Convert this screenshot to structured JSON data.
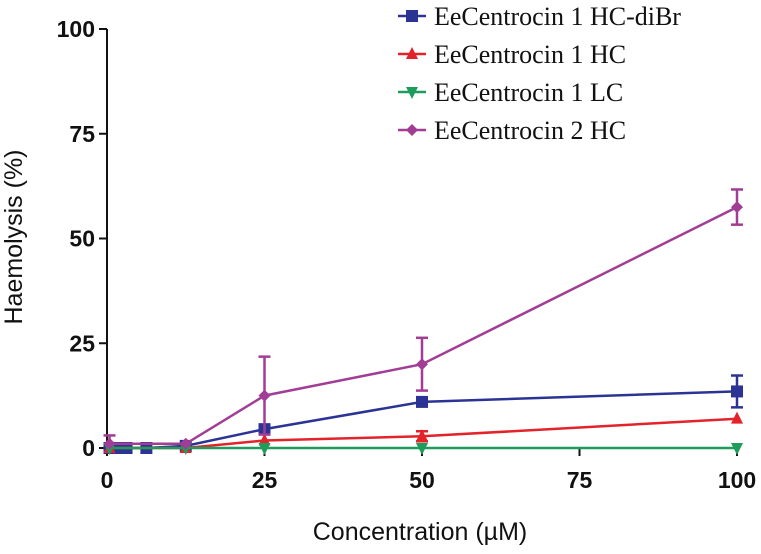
{
  "chart_data": {
    "type": "line",
    "title": "",
    "xlabel": "Concentration (µM)",
    "ylabel": "Haemolysis (%)",
    "xlim": [
      0,
      100
    ],
    "ylim": [
      0,
      100
    ],
    "xticks": [
      "0",
      "25",
      "50",
      "75",
      "100"
    ],
    "yticks": [
      "0",
      "25",
      "50",
      "75",
      "100"
    ],
    "grid": false,
    "legend": "top-right",
    "series": [
      {
        "name": "EeCentrocin 1 HC-diBr",
        "color": "#2B3494",
        "marker": "square",
        "points": [
          {
            "x": 0.4,
            "y": 0,
            "err": 0
          },
          {
            "x": 0.8,
            "y": 0,
            "err": 0
          },
          {
            "x": 1.6,
            "y": 0,
            "err": 0
          },
          {
            "x": 3.1,
            "y": 0,
            "err": 0
          },
          {
            "x": 6.25,
            "y": 0,
            "err": 0
          },
          {
            "x": 12.5,
            "y": 0.5,
            "err": 0
          },
          {
            "x": 25,
            "y": 4.5,
            "err": 0
          },
          {
            "x": 50,
            "y": 11,
            "err": 0
          },
          {
            "x": 100,
            "y": 13.5,
            "err": 3.8
          }
        ]
      },
      {
        "name": "EeCentrocin 1 HC",
        "color": "#E3232A",
        "marker": "triangle-up",
        "points": [
          {
            "x": 0.4,
            "y": 0,
            "err": 0
          },
          {
            "x": 12.5,
            "y": 0,
            "err": 0
          },
          {
            "x": 25,
            "y": 1.8,
            "err": 0
          },
          {
            "x": 50,
            "y": 2.8,
            "err": 1.2
          },
          {
            "x": 100,
            "y": 7,
            "err": 0
          }
        ]
      },
      {
        "name": "EeCentrocin 1 LC",
        "color": "#1E9C5C",
        "marker": "triangle-down",
        "points": [
          {
            "x": 0.4,
            "y": 0,
            "err": 0
          },
          {
            "x": 12.5,
            "y": 0,
            "err": 0
          },
          {
            "x": 25,
            "y": 0,
            "err": 0
          },
          {
            "x": 50,
            "y": 0,
            "err": 0
          },
          {
            "x": 100,
            "y": 0,
            "err": 0
          }
        ]
      },
      {
        "name": "EeCentrocin 2 HC",
        "color": "#A23D96",
        "marker": "diamond",
        "points": [
          {
            "x": 0.4,
            "y": 1,
            "err": 2
          },
          {
            "x": 12.5,
            "y": 1,
            "err": 0
          },
          {
            "x": 25,
            "y": 12.5,
            "err": 9.3
          },
          {
            "x": 50,
            "y": 20,
            "err": 6.3
          },
          {
            "x": 100,
            "y": 57.5,
            "err": 4.2
          }
        ]
      }
    ]
  }
}
